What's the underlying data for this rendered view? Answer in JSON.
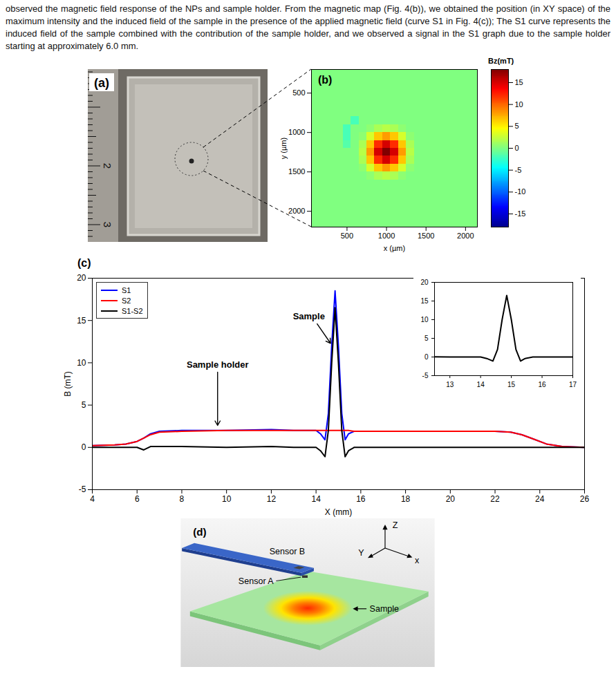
{
  "paragraph": "observed the magnetic field response of the NPs and sample holder. From the magnetic map (Fig. 4(b)), we obtained the position (in XY space) of the maximum intensity and the induced field of the sample in the presence of the applied magnetic field (curve S1 in Fig. 4(c)); The S1 curve represents the induced field of the sample combined with the contribution of the sample holder, and we observed a signal in the S1 graph due to the sample holder starting at approximately 6.0 mm.",
  "figure": {
    "photo": {
      "label": "(a)",
      "ruler_labels": [
        "2",
        "3"
      ]
    },
    "diagram": {
      "label": "(d)",
      "sensor_b": "Sensor B",
      "sensor_a": "Sensor A",
      "sample": "Sample",
      "axis_z": "Z",
      "axis_y": "Y",
      "axis_x": "x"
    }
  },
  "chart_data": [
    {
      "type": "heatmap",
      "label": "(b)",
      "xlabel": "x (µm)",
      "ylabel": "y (µm)",
      "xlim": [
        50,
        2150
      ],
      "xticks": [
        500,
        1000,
        1500,
        2000
      ],
      "ylim": [
        200,
        2200
      ],
      "yticks": [
        500,
        1000,
        1500,
        2000
      ],
      "x": [
        100,
        200,
        300,
        400,
        500,
        600,
        700,
        800,
        900,
        1000,
        1100,
        1200,
        1300,
        1400,
        1500,
        1600,
        1700,
        1800,
        1900,
        2000,
        2100
      ],
      "y": [
        250,
        350,
        450,
        550,
        650,
        750,
        850,
        950,
        1050,
        1150,
        1250,
        1350,
        1450,
        1550,
        1650,
        1750,
        1850,
        1950,
        2050,
        2150
      ],
      "z": [
        [
          0,
          0,
          0,
          0,
          0,
          0,
          0,
          0,
          0,
          0,
          0,
          0,
          0,
          0,
          0,
          0,
          0,
          0,
          0,
          0,
          0
        ],
        [
          0,
          0,
          0,
          0,
          0,
          0,
          0,
          0,
          0,
          0,
          0,
          0,
          0,
          0,
          0,
          0,
          0,
          0,
          0,
          0,
          0
        ],
        [
          0,
          0,
          0,
          0,
          0,
          0,
          0,
          0,
          0,
          0,
          0,
          0,
          0,
          0,
          0,
          0,
          0,
          0,
          0,
          0,
          0
        ],
        [
          0,
          0,
          0,
          0,
          0,
          0,
          0,
          0,
          0,
          0,
          0,
          0,
          0,
          0,
          0,
          0,
          0,
          0,
          0,
          0,
          0
        ],
        [
          0,
          0,
          0,
          0,
          0,
          0,
          0,
          0,
          0,
          0,
          0,
          0,
          0,
          0,
          0,
          0,
          0,
          0,
          0,
          0,
          0
        ],
        [
          0,
          0,
          0,
          0,
          0,
          0,
          0,
          0,
          0,
          0,
          0,
          0,
          0,
          0,
          0,
          0,
          0,
          0,
          0,
          0,
          0
        ],
        [
          0,
          0,
          0,
          0,
          0,
          -2,
          0,
          0,
          0,
          0,
          0,
          0,
          0,
          0,
          0,
          0,
          0,
          0,
          0,
          0,
          0
        ],
        [
          0,
          0,
          0,
          0,
          -2,
          0,
          0,
          0.5,
          1.5,
          2,
          1.5,
          0.5,
          0,
          0,
          0,
          0,
          0,
          0,
          0,
          0,
          0
        ],
        [
          0,
          0,
          0,
          0,
          -2,
          0,
          0.5,
          3,
          6.5,
          8,
          6.5,
          3,
          0.5,
          0,
          0,
          0,
          0,
          0,
          0,
          0,
          0
        ],
        [
          0,
          0,
          0,
          0,
          -1.5,
          0,
          1.5,
          6.5,
          12,
          15,
          12,
          6.5,
          1.5,
          0,
          0,
          0,
          0,
          0,
          0,
          0,
          0
        ],
        [
          0,
          0,
          0,
          0,
          0,
          0,
          2,
          8,
          15,
          18,
          15,
          8,
          2,
          0,
          0,
          0,
          0,
          0,
          0,
          0,
          0
        ],
        [
          0,
          0,
          0,
          0,
          0,
          0,
          1.5,
          6.5,
          12,
          15,
          12,
          6.5,
          1.5,
          0,
          0,
          0,
          0,
          0,
          0,
          0,
          0
        ],
        [
          0,
          0,
          0,
          0,
          0,
          0,
          0.5,
          3,
          6.5,
          8,
          6.5,
          3,
          0.5,
          0,
          0,
          0,
          0,
          0,
          0,
          0,
          0
        ],
        [
          0,
          0,
          0,
          0,
          0,
          0,
          0,
          0.5,
          1.5,
          2,
          1.5,
          0.5,
          0,
          0,
          0,
          0,
          0,
          0,
          0,
          0,
          0
        ],
        [
          0,
          0,
          0,
          0,
          0,
          0,
          0,
          0,
          0,
          0,
          0,
          0,
          0,
          0,
          0,
          0,
          0,
          0,
          0,
          0,
          0
        ],
        [
          0,
          0,
          0,
          0,
          0,
          0,
          0,
          0,
          0,
          0,
          0,
          0,
          0,
          0,
          0,
          0,
          0,
          0,
          0,
          0,
          0
        ],
        [
          0,
          0,
          0,
          0,
          0,
          0,
          0,
          0,
          0,
          0,
          0,
          0,
          0,
          0,
          0,
          0,
          0,
          0,
          0,
          0,
          0
        ],
        [
          0,
          0,
          0,
          0,
          0,
          0,
          0,
          0,
          0,
          0,
          0,
          0,
          0,
          0,
          0,
          0,
          0,
          0,
          0,
          0,
          0
        ],
        [
          0,
          0,
          0,
          0,
          0,
          0,
          0,
          0,
          0,
          0,
          0,
          0,
          0,
          0,
          0,
          0,
          0,
          0,
          0,
          0,
          0
        ],
        [
          0,
          0,
          0,
          0,
          0,
          0,
          0,
          0,
          0,
          0,
          0,
          0,
          0,
          0,
          0,
          0,
          0,
          0,
          0,
          0,
          0
        ]
      ],
      "colorbar": {
        "label": "Bz(mT)",
        "range": [
          -18,
          18
        ],
        "ticks": [
          -15,
          -10,
          -5,
          0,
          5,
          10,
          15
        ]
      }
    },
    {
      "type": "line",
      "label": "(c)",
      "xlabel": "X (mm)",
      "ylabel": "B (mT)",
      "xlim": [
        4,
        26
      ],
      "xticks": [
        4,
        6,
        8,
        10,
        12,
        14,
        16,
        18,
        20,
        22,
        24,
        26
      ],
      "ylim": [
        -5,
        20
      ],
      "yticks": [
        -5,
        0,
        5,
        10,
        15,
        20
      ],
      "legend": "top-left",
      "x": [
        4,
        5,
        5.5,
        6,
        6.3,
        6.6,
        7,
        8,
        10,
        12,
        13,
        14,
        14.2,
        14.4,
        14.55,
        14.7,
        14.85,
        15.0,
        15.15,
        15.3,
        15.45,
        15.7,
        16,
        18,
        20,
        22,
        22.7,
        23.2,
        23.7,
        24.3,
        25,
        26
      ],
      "series": [
        {
          "name": "S1",
          "color": "#0000ff",
          "values": [
            0.2,
            0.3,
            0.4,
            0.7,
            1.1,
            1.6,
            1.9,
            2.0,
            2.0,
            2.1,
            2.0,
            2.0,
            1.6,
            0.9,
            4,
            12,
            18.5,
            12,
            4,
            0.9,
            1.6,
            1.9,
            1.9,
            1.9,
            1.9,
            1.9,
            1.8,
            1.5,
            1.0,
            0.4,
            0.1,
            0.0
          ]
        },
        {
          "name": "S2",
          "color": "#ff0000",
          "values": [
            0.2,
            0.3,
            0.4,
            0.7,
            1.1,
            1.5,
            1.8,
            1.9,
            2.0,
            2.0,
            2.0,
            2.0,
            2.0,
            2.0,
            2.0,
            2.0,
            2.0,
            2.0,
            2.0,
            2.0,
            2.0,
            1.9,
            1.9,
            1.9,
            1.9,
            1.9,
            1.8,
            1.5,
            1.0,
            0.4,
            0.1,
            0.0
          ]
        },
        {
          "name": "S1-S2",
          "color": "#000000",
          "values": [
            0.0,
            0.0,
            0.0,
            0.0,
            -0.3,
            0.1,
            0.1,
            0.1,
            0.0,
            0.1,
            0.0,
            0.0,
            -0.4,
            -1.1,
            2,
            10,
            16.5,
            10,
            2,
            -1.1,
            -0.4,
            0.0,
            0.0,
            0.0,
            0.0,
            0.0,
            0.0,
            0.0,
            0.0,
            0.0,
            0.0,
            0.0
          ]
        }
      ],
      "annotations": [
        {
          "text": "Sample",
          "x": 14.05,
          "y": 14.6,
          "arrow_x": 14.65,
          "arrow_y": 12.3
        },
        {
          "text": "Sample holder",
          "x": 9.6,
          "y": 8.9,
          "arrow_x": 9.6,
          "arrow_y": 2.6
        }
      ],
      "inset": {
        "series": "S1-S2",
        "xlim": [
          12.5,
          17
        ],
        "xticks": [
          13,
          14,
          15,
          16,
          17
        ],
        "ylim": [
          -5,
          20
        ],
        "yticks": [
          -5,
          0,
          5,
          10,
          15,
          20
        ]
      }
    }
  ]
}
